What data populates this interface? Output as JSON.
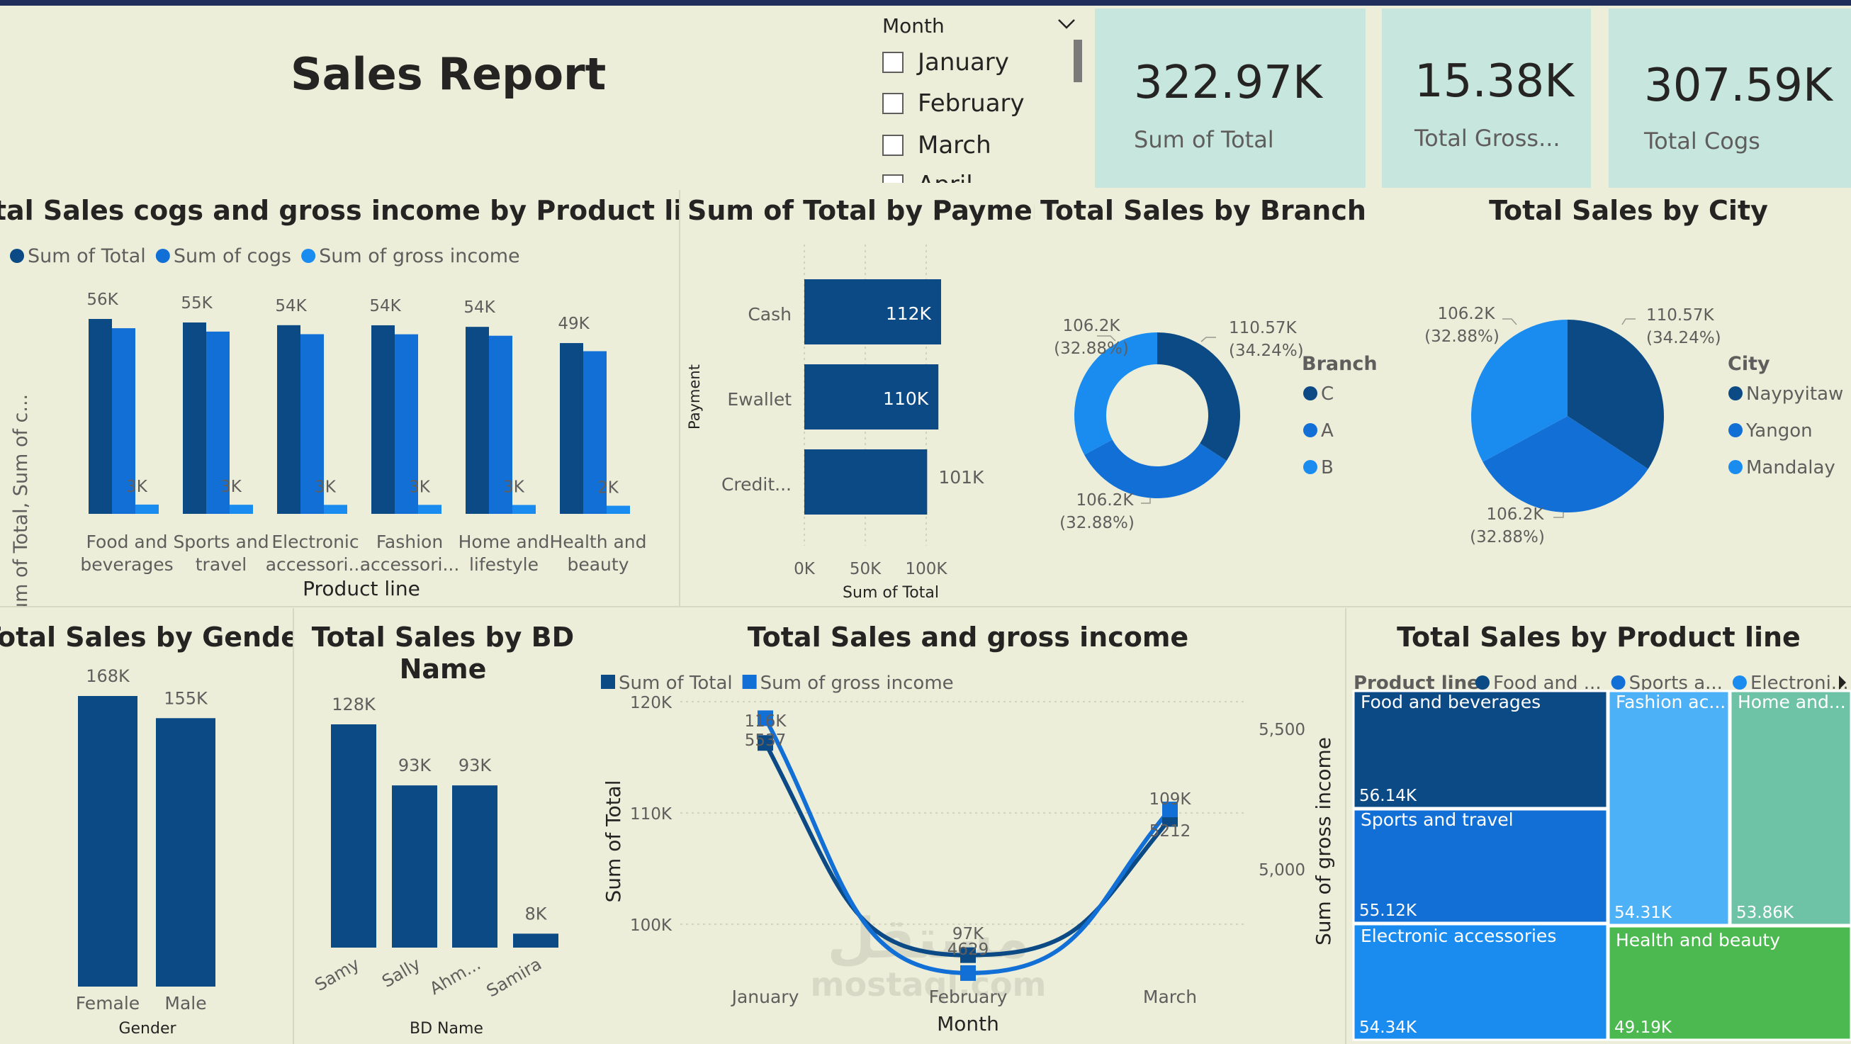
{
  "header": {
    "title": "Sales Report"
  },
  "slicer": {
    "title": "Month",
    "items": [
      {
        "label": "January"
      },
      {
        "label": "February"
      },
      {
        "label": "March"
      },
      {
        "label": "April"
      }
    ]
  },
  "kpis": [
    {
      "value": "322.97K",
      "label": "Sum of Total"
    },
    {
      "value": "15.38K",
      "label": "Total Gross..."
    },
    {
      "value": "307.59K",
      "label": "Total Cogs"
    }
  ],
  "colors": {
    "dark": "#0C4A86",
    "mid": "#126FD6",
    "light": "#1A8CF0",
    "teal": "#C6E6DE",
    "tm_fashion": "#4DB1F7",
    "tm_home": "#6EC3A6",
    "tm_health": "#4CB950"
  },
  "watermark": {
    "line1": "مستقل",
    "line2": "mostaql.com"
  },
  "chart_data": [
    {
      "id": "productline_clustered",
      "type": "bar",
      "title": "Total Sales cogs and gross income by Product line",
      "xlabel": "Product line",
      "ylabel": "Sum of Total, Sum of c...",
      "legend_position": "top-left",
      "categories": [
        [
          "Food and",
          "beverages"
        ],
        [
          "Sports and",
          "travel"
        ],
        [
          "Electronic",
          "accessori..."
        ],
        [
          "Fashion",
          "accessori..."
        ],
        [
          "Home and",
          "lifestyle"
        ],
        [
          "Health and",
          "beauty"
        ]
      ],
      "series": [
        {
          "name": "Sum of Total",
          "values": [
            56.14,
            55.12,
            54.34,
            54.31,
            53.86,
            49.19
          ],
          "labels": [
            "56K",
            "55K",
            "54K",
            "54K",
            "54K",
            "49K"
          ]
        },
        {
          "name": "Sum of cogs",
          "values": [
            53.47,
            52.5,
            51.75,
            51.72,
            51.3,
            46.85
          ],
          "labels": [
            "",
            "",
            "",
            "",
            "",
            ""
          ]
        },
        {
          "name": "Sum of gross income",
          "values": [
            2.67,
            2.62,
            2.59,
            2.59,
            2.56,
            2.34
          ],
          "labels": [
            "3K",
            "3K",
            "3K",
            "3K",
            "3K",
            "2K"
          ]
        }
      ],
      "ylim": [
        0,
        60
      ]
    },
    {
      "id": "payment_bar",
      "type": "bar",
      "orientation": "horizontal",
      "title": "Sum of Total by Payment",
      "xlabel": "Sum of Total",
      "ylabel": "Payment",
      "categories": [
        "Cash",
        "Ewallet",
        "Credit..."
      ],
      "values": [
        112.2,
        109.99,
        100.77
      ],
      "labels": [
        "112K",
        "110K",
        "101K"
      ],
      "xticks": [
        "0K",
        "50K",
        "100K"
      ],
      "xlim": [
        0,
        110
      ]
    },
    {
      "id": "branch_donut",
      "type": "pie",
      "donut": true,
      "title": "Total Sales by Branch",
      "legend_title": "Branch",
      "legend_position": "right",
      "categories": [
        "C",
        "A",
        "B"
      ],
      "values": [
        110.57,
        106.2,
        106.2
      ],
      "labels": [
        [
          "110.57K",
          "(34.24%)"
        ],
        [
          "106.2K",
          "(32.88%)"
        ],
        [
          "106.2K",
          "(32.88%)"
        ]
      ]
    },
    {
      "id": "city_pie",
      "type": "pie",
      "title": "Total Sales by City",
      "legend_title": "City",
      "legend_position": "right",
      "categories": [
        "Naypyitaw",
        "Yangon",
        "Mandalay"
      ],
      "values": [
        110.57,
        106.2,
        106.2
      ],
      "labels": [
        [
          "110.57K",
          "(34.24%)"
        ],
        [
          "106.2K",
          "(32.88%)"
        ],
        [
          "106.2K",
          "(32.88%)"
        ]
      ]
    },
    {
      "id": "gender_bar",
      "type": "bar",
      "title": "Total Sales by Gender",
      "xlabel": "Gender",
      "categories": [
        "Female",
        "Male"
      ],
      "values": [
        167.88,
        155.08
      ],
      "labels": [
        "168K",
        "155K"
      ],
      "ylim": [
        0,
        170
      ]
    },
    {
      "id": "bdname_bar",
      "type": "bar",
      "title": "Total Sales by BD Name",
      "xlabel": "BD Name",
      "categories": [
        "Samy",
        "Sally",
        "Ahm...",
        "Samira"
      ],
      "values": [
        128,
        93,
        93,
        8
      ],
      "labels": [
        "128K",
        "93K",
        "93K",
        "8K"
      ],
      "ylim": [
        0,
        130
      ]
    },
    {
      "id": "month_line",
      "type": "line",
      "title": "Total Sales and gross income",
      "xlabel": "Month",
      "ylabel": "Sum of Total",
      "y2label": "Sum of gross income",
      "legend_position": "top-left",
      "categories": [
        "January",
        "February",
        "March"
      ],
      "yticks": [
        "120K",
        "110K",
        "100K"
      ],
      "ylim": [
        95,
        120
      ],
      "y2ticks": [
        "5,500",
        "5,000"
      ],
      "y2lim": [
        4450,
        5550
      ],
      "series": [
        {
          "name": "Sum of Total",
          "axis": "left",
          "values": [
            116.29,
            97.22,
            109.46
          ],
          "labels": [
            "116K",
            "97K",
            "109K"
          ]
        },
        {
          "name": "Sum of gross income",
          "axis": "right",
          "values": [
            5537,
            4629,
            5212
          ],
          "labels": [
            "5537",
            "4629",
            "5212"
          ]
        }
      ]
    },
    {
      "id": "productline_treemap",
      "type": "treemap",
      "title": "Total Sales by Product line",
      "legend_title": "Product line",
      "legend_items": [
        "Food and ...",
        "Sports a...",
        "Electroni..."
      ],
      "categories": [
        "Food and beverages",
        "Sports and travel",
        "Electronic accessories",
        "Fashion ac...",
        "Home and...",
        "Health and beauty"
      ],
      "values": [
        56.14,
        55.12,
        54.34,
        54.31,
        53.86,
        49.19
      ],
      "labels": [
        "56.14K",
        "55.12K",
        "54.34K",
        "54.31K",
        "53.86K",
        "49.19K"
      ]
    }
  ]
}
